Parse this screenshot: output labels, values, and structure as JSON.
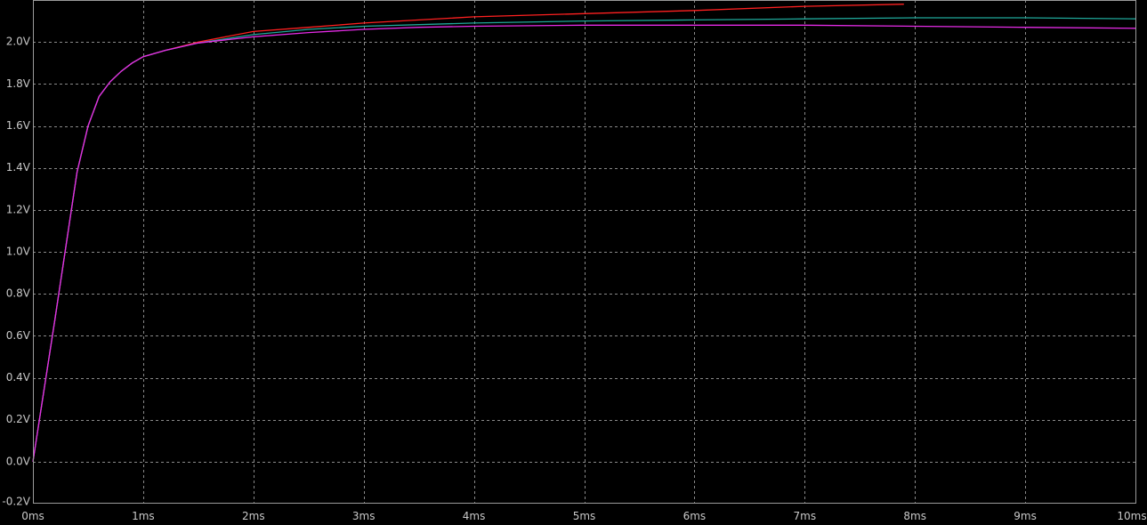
{
  "chart_data": {
    "type": "line",
    "title": "",
    "xlabel": "",
    "ylabel": "",
    "xlim": [
      0,
      10
    ],
    "ylim": [
      -0.2,
      2.2
    ],
    "grid": true,
    "x_ticks": [
      0,
      1,
      2,
      3,
      4,
      5,
      6,
      7,
      8,
      9,
      10
    ],
    "x_tick_labels": [
      "0ms",
      "1ms",
      "2ms",
      "3ms",
      "4ms",
      "5ms",
      "6ms",
      "7ms",
      "8ms",
      "9ms",
      "10ms"
    ],
    "y_ticks": [
      -0.2,
      0.0,
      0.2,
      0.4,
      0.6,
      0.8,
      1.0,
      1.2,
      1.4,
      1.6,
      1.8,
      2.0
    ],
    "y_tick_labels": [
      "-0.2V",
      "0.0V",
      "0.2V",
      "0.4V",
      "0.6V",
      "0.8V",
      "1.0V",
      "1.2V",
      "1.4V",
      "1.6V",
      "1.8V",
      "2.0V"
    ],
    "series": [
      {
        "color": "#ff2020",
        "x": [
          0,
          0.2,
          0.4,
          0.5,
          0.6,
          0.7,
          0.8,
          0.9,
          1.0,
          1.2,
          1.5,
          2.0,
          2.5,
          3.0,
          4.0,
          5.0,
          6.0,
          7.0,
          7.9
        ],
        "y": [
          0.0,
          0.68,
          1.38,
          1.6,
          1.74,
          1.81,
          1.86,
          1.9,
          1.93,
          1.96,
          2.0,
          2.05,
          2.07,
          2.09,
          2.12,
          2.135,
          2.15,
          2.17,
          2.18
        ]
      },
      {
        "color": "#1fa89a",
        "x": [
          0,
          0.2,
          0.4,
          0.5,
          0.6,
          0.7,
          0.8,
          0.9,
          1.0,
          1.2,
          1.5,
          2.0,
          2.5,
          3.0,
          4.0,
          5.0,
          6.0,
          7.0,
          8.0,
          9.0,
          10.0
        ],
        "y": [
          0.0,
          0.68,
          1.38,
          1.6,
          1.74,
          1.81,
          1.86,
          1.9,
          1.93,
          1.96,
          1.995,
          2.035,
          2.06,
          2.075,
          2.09,
          2.1,
          2.105,
          2.11,
          2.115,
          2.115,
          2.11
        ]
      },
      {
        "color": "#e52be6",
        "x": [
          0,
          0.2,
          0.4,
          0.5,
          0.6,
          0.7,
          0.8,
          0.9,
          1.0,
          1.2,
          1.5,
          2.0,
          2.5,
          3.0,
          3.5,
          4.0,
          5.0,
          6.0,
          7.0,
          8.0,
          9.0,
          10.0
        ],
        "y": [
          0.0,
          0.68,
          1.38,
          1.6,
          1.74,
          1.81,
          1.86,
          1.9,
          1.93,
          1.96,
          1.995,
          2.025,
          2.045,
          2.06,
          2.07,
          2.075,
          2.08,
          2.08,
          2.08,
          2.075,
          2.07,
          2.065
        ]
      }
    ]
  }
}
